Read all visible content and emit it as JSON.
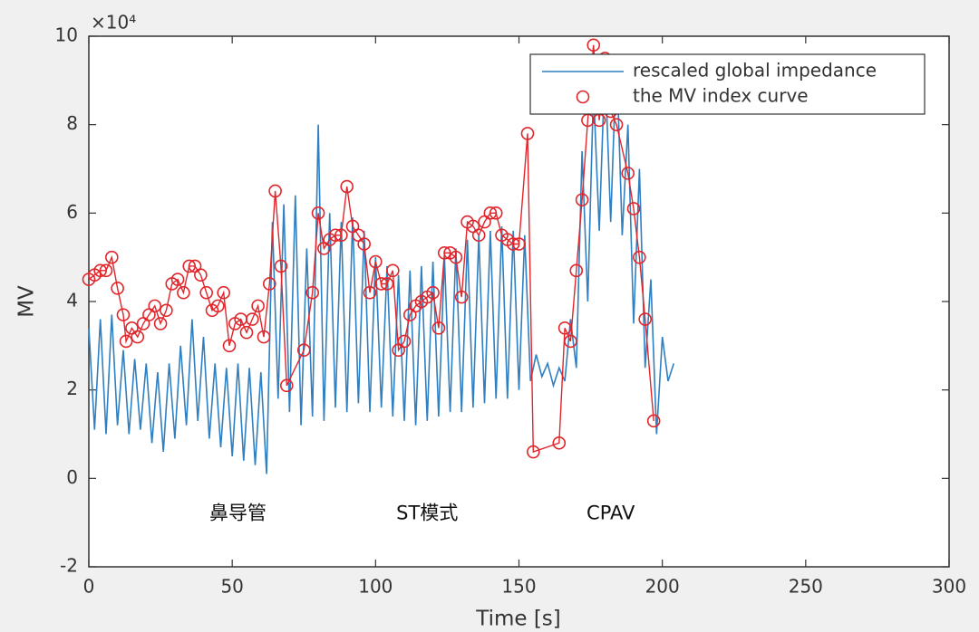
{
  "chart_data": {
    "type": "line",
    "y_exponent_label": "×10⁴",
    "xlabel": "Time [s]",
    "ylabel": "MV",
    "xlim": [
      0,
      300
    ],
    "xticks": [
      0,
      50,
      100,
      150,
      200,
      250,
      300
    ],
    "ylim": [
      -2,
      10
    ],
    "yticks": [
      -2,
      0,
      2,
      4,
      6,
      8,
      10
    ],
    "legend": "top right",
    "annotations": [
      {
        "text": "鼻导管",
        "x": 52,
        "y": -0.8
      },
      {
        "text": "ST模式",
        "x": 118,
        "y": -0.8
      },
      {
        "text": "CPAV",
        "x": 182,
        "y": -0.8
      }
    ],
    "series": [
      {
        "name": "rescaled global impedance",
        "color": "#2f7fc1",
        "marker": "none",
        "x": [
          0,
          2,
          4,
          6,
          8,
          10,
          12,
          14,
          16,
          18,
          20,
          22,
          24,
          26,
          28,
          30,
          32,
          34,
          36,
          38,
          40,
          42,
          44,
          46,
          48,
          50,
          52,
          54,
          56,
          58,
          60,
          62,
          64,
          66,
          68,
          70,
          72,
          74,
          76,
          78,
          80,
          82,
          84,
          86,
          88,
          90,
          92,
          94,
          96,
          98,
          100,
          102,
          104,
          106,
          108,
          110,
          112,
          114,
          116,
          118,
          120,
          122,
          124,
          126,
          128,
          130,
          132,
          134,
          136,
          138,
          140,
          142,
          144,
          146,
          148,
          150,
          152,
          154,
          156,
          158,
          160,
          162,
          164,
          166,
          168,
          170,
          172,
          174,
          176,
          178,
          180,
          182,
          184,
          186,
          188,
          190,
          192,
          194,
          196,
          198,
          200,
          202,
          204
        ],
        "values": [
          3.4,
          1.1,
          3.6,
          1.0,
          3.7,
          1.2,
          2.9,
          1.0,
          2.7,
          1.1,
          2.6,
          0.8,
          2.4,
          0.6,
          2.6,
          0.9,
          3.0,
          1.2,
          3.6,
          1.3,
          3.2,
          0.9,
          2.6,
          0.7,
          2.5,
          0.5,
          2.6,
          0.4,
          2.5,
          0.3,
          2.4,
          0.1,
          5.8,
          1.8,
          6.2,
          1.5,
          6.4,
          1.2,
          5.2,
          1.4,
          8.0,
          1.3,
          6.0,
          1.6,
          5.8,
          1.5,
          5.9,
          1.7,
          5.6,
          1.5,
          5.0,
          1.6,
          4.8,
          1.4,
          4.6,
          1.3,
          4.7,
          1.2,
          4.8,
          1.3,
          4.9,
          1.4,
          5.0,
          1.5,
          5.2,
          1.5,
          5.4,
          1.6,
          5.5,
          1.7,
          5.6,
          1.8,
          5.7,
          1.8,
          5.6,
          2.0,
          5.5,
          2.2,
          2.8,
          2.3,
          2.6,
          2.1,
          2.5,
          2.2,
          3.6,
          2.5,
          7.4,
          4.0,
          8.8,
          5.6,
          9.4,
          5.8,
          9.6,
          5.5,
          8.0,
          3.5,
          7.0,
          2.5,
          4.5,
          1.0,
          3.2,
          2.2,
          2.6
        ]
      },
      {
        "name": "the MV index curve",
        "color": "#e0262b",
        "marker": "circle",
        "x": [
          0,
          2,
          4,
          6,
          8,
          10,
          12,
          13,
          15,
          17,
          19,
          21,
          23,
          25,
          27,
          29,
          31,
          33,
          35,
          37,
          39,
          41,
          43,
          45,
          47,
          49,
          51,
          53,
          55,
          57,
          59,
          61,
          63,
          65,
          67,
          69,
          75,
          78,
          80,
          82,
          84,
          86,
          88,
          90,
          92,
          94,
          96,
          98,
          100,
          102,
          104,
          106,
          108,
          110,
          112,
          114,
          116,
          118,
          120,
          122,
          124,
          126,
          128,
          130,
          132,
          134,
          136,
          138,
          140,
          142,
          144,
          146,
          148,
          150,
          153,
          155,
          164,
          166,
          168,
          170,
          172,
          174,
          176,
          178,
          180,
          182,
          184,
          188,
          190,
          192,
          194,
          197
        ],
        "values": [
          4.5,
          4.6,
          4.7,
          4.7,
          5.0,
          4.3,
          3.7,
          3.1,
          3.4,
          3.2,
          3.5,
          3.7,
          3.9,
          3.5,
          3.8,
          4.4,
          4.5,
          4.2,
          4.8,
          4.8,
          4.6,
          4.2,
          3.8,
          3.9,
          4.2,
          3.0,
          3.5,
          3.6,
          3.3,
          3.6,
          3.9,
          3.2,
          4.4,
          6.5,
          4.8,
          2.1,
          2.9,
          4.2,
          6.0,
          5.2,
          5.4,
          5.5,
          5.5,
          6.6,
          5.7,
          5.5,
          5.3,
          4.2,
          4.9,
          4.4,
          4.4,
          4.7,
          2.9,
          3.1,
          3.7,
          3.9,
          4.0,
          4.1,
          4.2,
          3.4,
          5.1,
          5.1,
          5.0,
          4.1,
          5.8,
          5.7,
          5.5,
          5.8,
          6.0,
          6.0,
          5.5,
          5.4,
          5.3,
          5.3,
          7.8,
          0.6,
          0.8,
          3.4,
          3.1,
          4.7,
          6.3,
          8.1,
          9.8,
          8.1,
          9.5,
          8.3,
          8.0,
          6.9,
          6.1,
          5.0,
          3.6,
          1.3
        ]
      }
    ]
  }
}
